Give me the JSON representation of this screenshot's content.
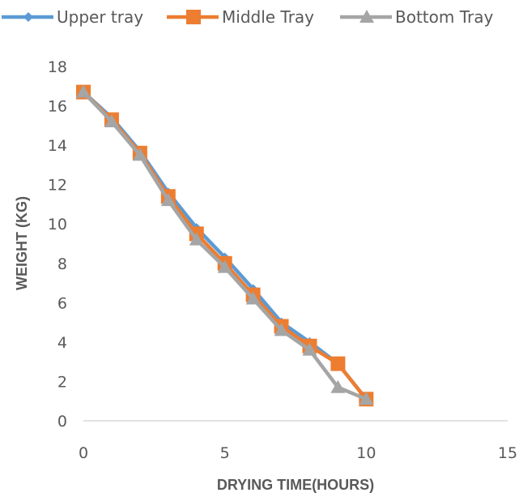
{
  "chart_data": {
    "type": "line",
    "xlabel": "DRYING TIME(HOURS)",
    "ylabel": "WEIGHT (KG)",
    "xlim": [
      0,
      15
    ],
    "ylim": [
      0,
      18
    ],
    "x_ticks": [
      0,
      5,
      10,
      15
    ],
    "y_ticks": [
      0,
      2,
      4,
      6,
      8,
      10,
      12,
      14,
      16,
      18
    ],
    "grid": false,
    "legend_position": "top",
    "series": [
      {
        "name": "Upper tray",
        "color": "#5B9BD5",
        "marker": "diamond",
        "x": [
          0,
          1,
          2,
          3,
          4,
          5,
          6,
          7,
          8,
          9,
          10
        ],
        "y": [
          16.7,
          15.4,
          13.7,
          11.6,
          9.8,
          8.3,
          6.7,
          5.0,
          4.0,
          2.9,
          1.1
        ]
      },
      {
        "name": "Middle Tray",
        "color": "#ED7D31",
        "marker": "square",
        "x": [
          0,
          1,
          2,
          3,
          4,
          5,
          6,
          7,
          8,
          9,
          10
        ],
        "y": [
          16.7,
          15.3,
          13.6,
          11.4,
          9.5,
          8.0,
          6.4,
          4.8,
          3.8,
          2.9,
          1.1
        ]
      },
      {
        "name": "Bottom Tray",
        "color": "#A5A5A5",
        "marker": "triangle",
        "x": [
          0,
          1,
          2,
          3,
          4,
          5,
          6,
          7,
          8,
          9,
          10
        ],
        "y": [
          16.7,
          15.2,
          13.5,
          11.2,
          9.2,
          7.8,
          6.2,
          4.6,
          3.6,
          1.7,
          1.1
        ]
      }
    ]
  }
}
